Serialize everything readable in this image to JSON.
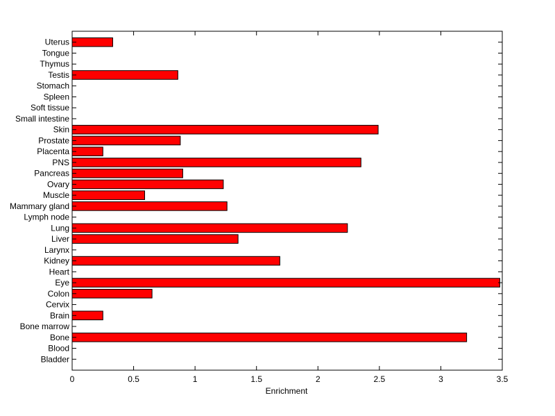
{
  "chart_data": {
    "type": "bar",
    "orientation": "horizontal",
    "categories": [
      "Bladder",
      "Blood",
      "Bone",
      "Bone marrow",
      "Brain",
      "Cervix",
      "Colon",
      "Eye",
      "Heart",
      "Kidney",
      "Larynx",
      "Liver",
      "Lung",
      "Lymph node",
      "Mammary gland",
      "Muscle",
      "Ovary",
      "Pancreas",
      "PNS",
      "Placenta",
      "Prostate",
      "Skin",
      "Small intestine",
      "Soft tissue",
      "Spleen",
      "Stomach",
      "Testis",
      "Thymus",
      "Tongue",
      "Uterus"
    ],
    "values": [
      0,
      0,
      3.21,
      0,
      0.25,
      0,
      0.65,
      3.48,
      0,
      1.69,
      0,
      1.35,
      2.24,
      0,
      1.26,
      0.59,
      1.23,
      0.9,
      2.35,
      0.25,
      0.88,
      2.49,
      0,
      0,
      0,
      0,
      0.86,
      0,
      0,
      0.33
    ],
    "xlabel": "Enrichment",
    "ylabel": "",
    "title": "",
    "xlim": [
      0,
      3.5
    ],
    "xticks": [
      "0",
      "0.5",
      "1",
      "1.5",
      "2",
      "2.5",
      "3",
      "3.5"
    ],
    "bar_color": "#ff0000",
    "grid": false
  }
}
